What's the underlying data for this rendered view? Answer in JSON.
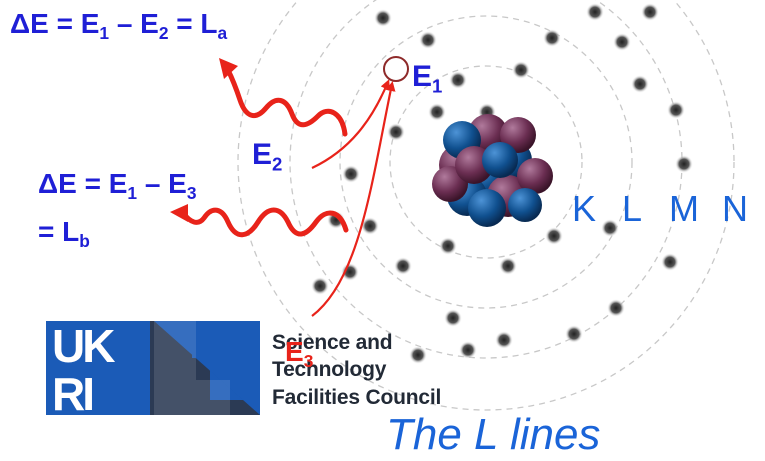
{
  "equation_a": {
    "lead": "ΔE = E",
    "s1": "1",
    "mid": " – E",
    "s2": "2",
    "mid2": " = L",
    "s3": "a"
  },
  "equation_b_line1": {
    "lead": "ΔE = E",
    "s1": "1",
    "mid": " – E",
    "s2": "3"
  },
  "equation_b_line2": {
    "lead": "= L",
    "s1": "b"
  },
  "labels": {
    "e1": {
      "main": "E",
      "sub": "1"
    },
    "e2": {
      "main": "E",
      "sub": "2"
    },
    "e3": {
      "main": "E",
      "sub": "3"
    }
  },
  "shells": [
    "K",
    "L",
    "M",
    "N"
  ],
  "logo": {
    "mark_top": "UK",
    "mark_bottom": "RI",
    "org_lines": [
      "Science and",
      "Technology",
      "Facilities Council"
    ]
  },
  "caption": "The L lines",
  "colors": {
    "equation_text": "#1f1fd6",
    "shell_labels": "#1a64d8",
    "transition_arrows": "#e8231a",
    "logo_blue": "#1b5bb7",
    "logo_dark": "#2b3a54",
    "nucleus_proton": "#6b2e52",
    "nucleus_neutron": "#10508f",
    "electron": "#333333",
    "orbit": "#c8c8c8"
  }
}
